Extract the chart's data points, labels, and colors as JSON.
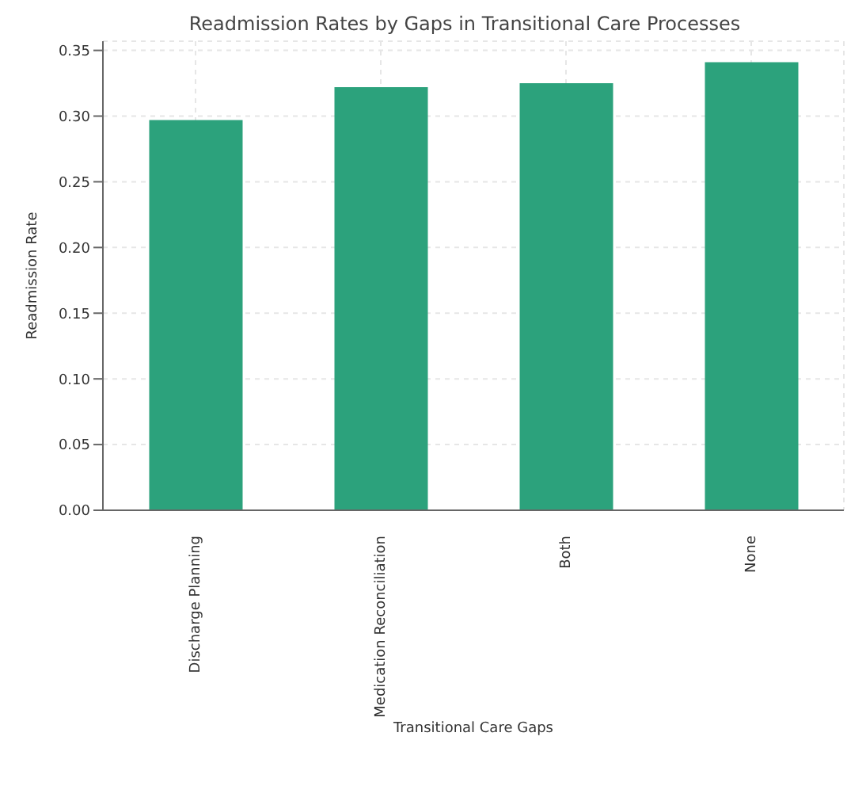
{
  "chart_data": {
    "type": "bar",
    "title": "Readmission Rates by Gaps in Transitional Care Processes",
    "xlabel": "Transitional Care Gaps",
    "ylabel": "Readmission Rate",
    "categories": [
      "Discharge Planning",
      "Medication Reconciliation",
      "Both",
      "None"
    ],
    "values": [
      0.297,
      0.322,
      0.325,
      0.341
    ],
    "color": "#2ca27c",
    "ylim": [
      0,
      0.357
    ],
    "yticks": [
      {
        "value": 0,
        "label": "0.00"
      },
      {
        "value": 0.05,
        "label": "0.05"
      },
      {
        "value": 0.1,
        "label": "0.10"
      },
      {
        "value": 0.15,
        "label": "0.15"
      },
      {
        "value": 0.2,
        "label": "0.20"
      },
      {
        "value": 0.25,
        "label": "0.25"
      },
      {
        "value": 0.3,
        "label": "0.30"
      },
      {
        "value": 0.35,
        "label": "0.35"
      }
    ],
    "grid": true
  }
}
